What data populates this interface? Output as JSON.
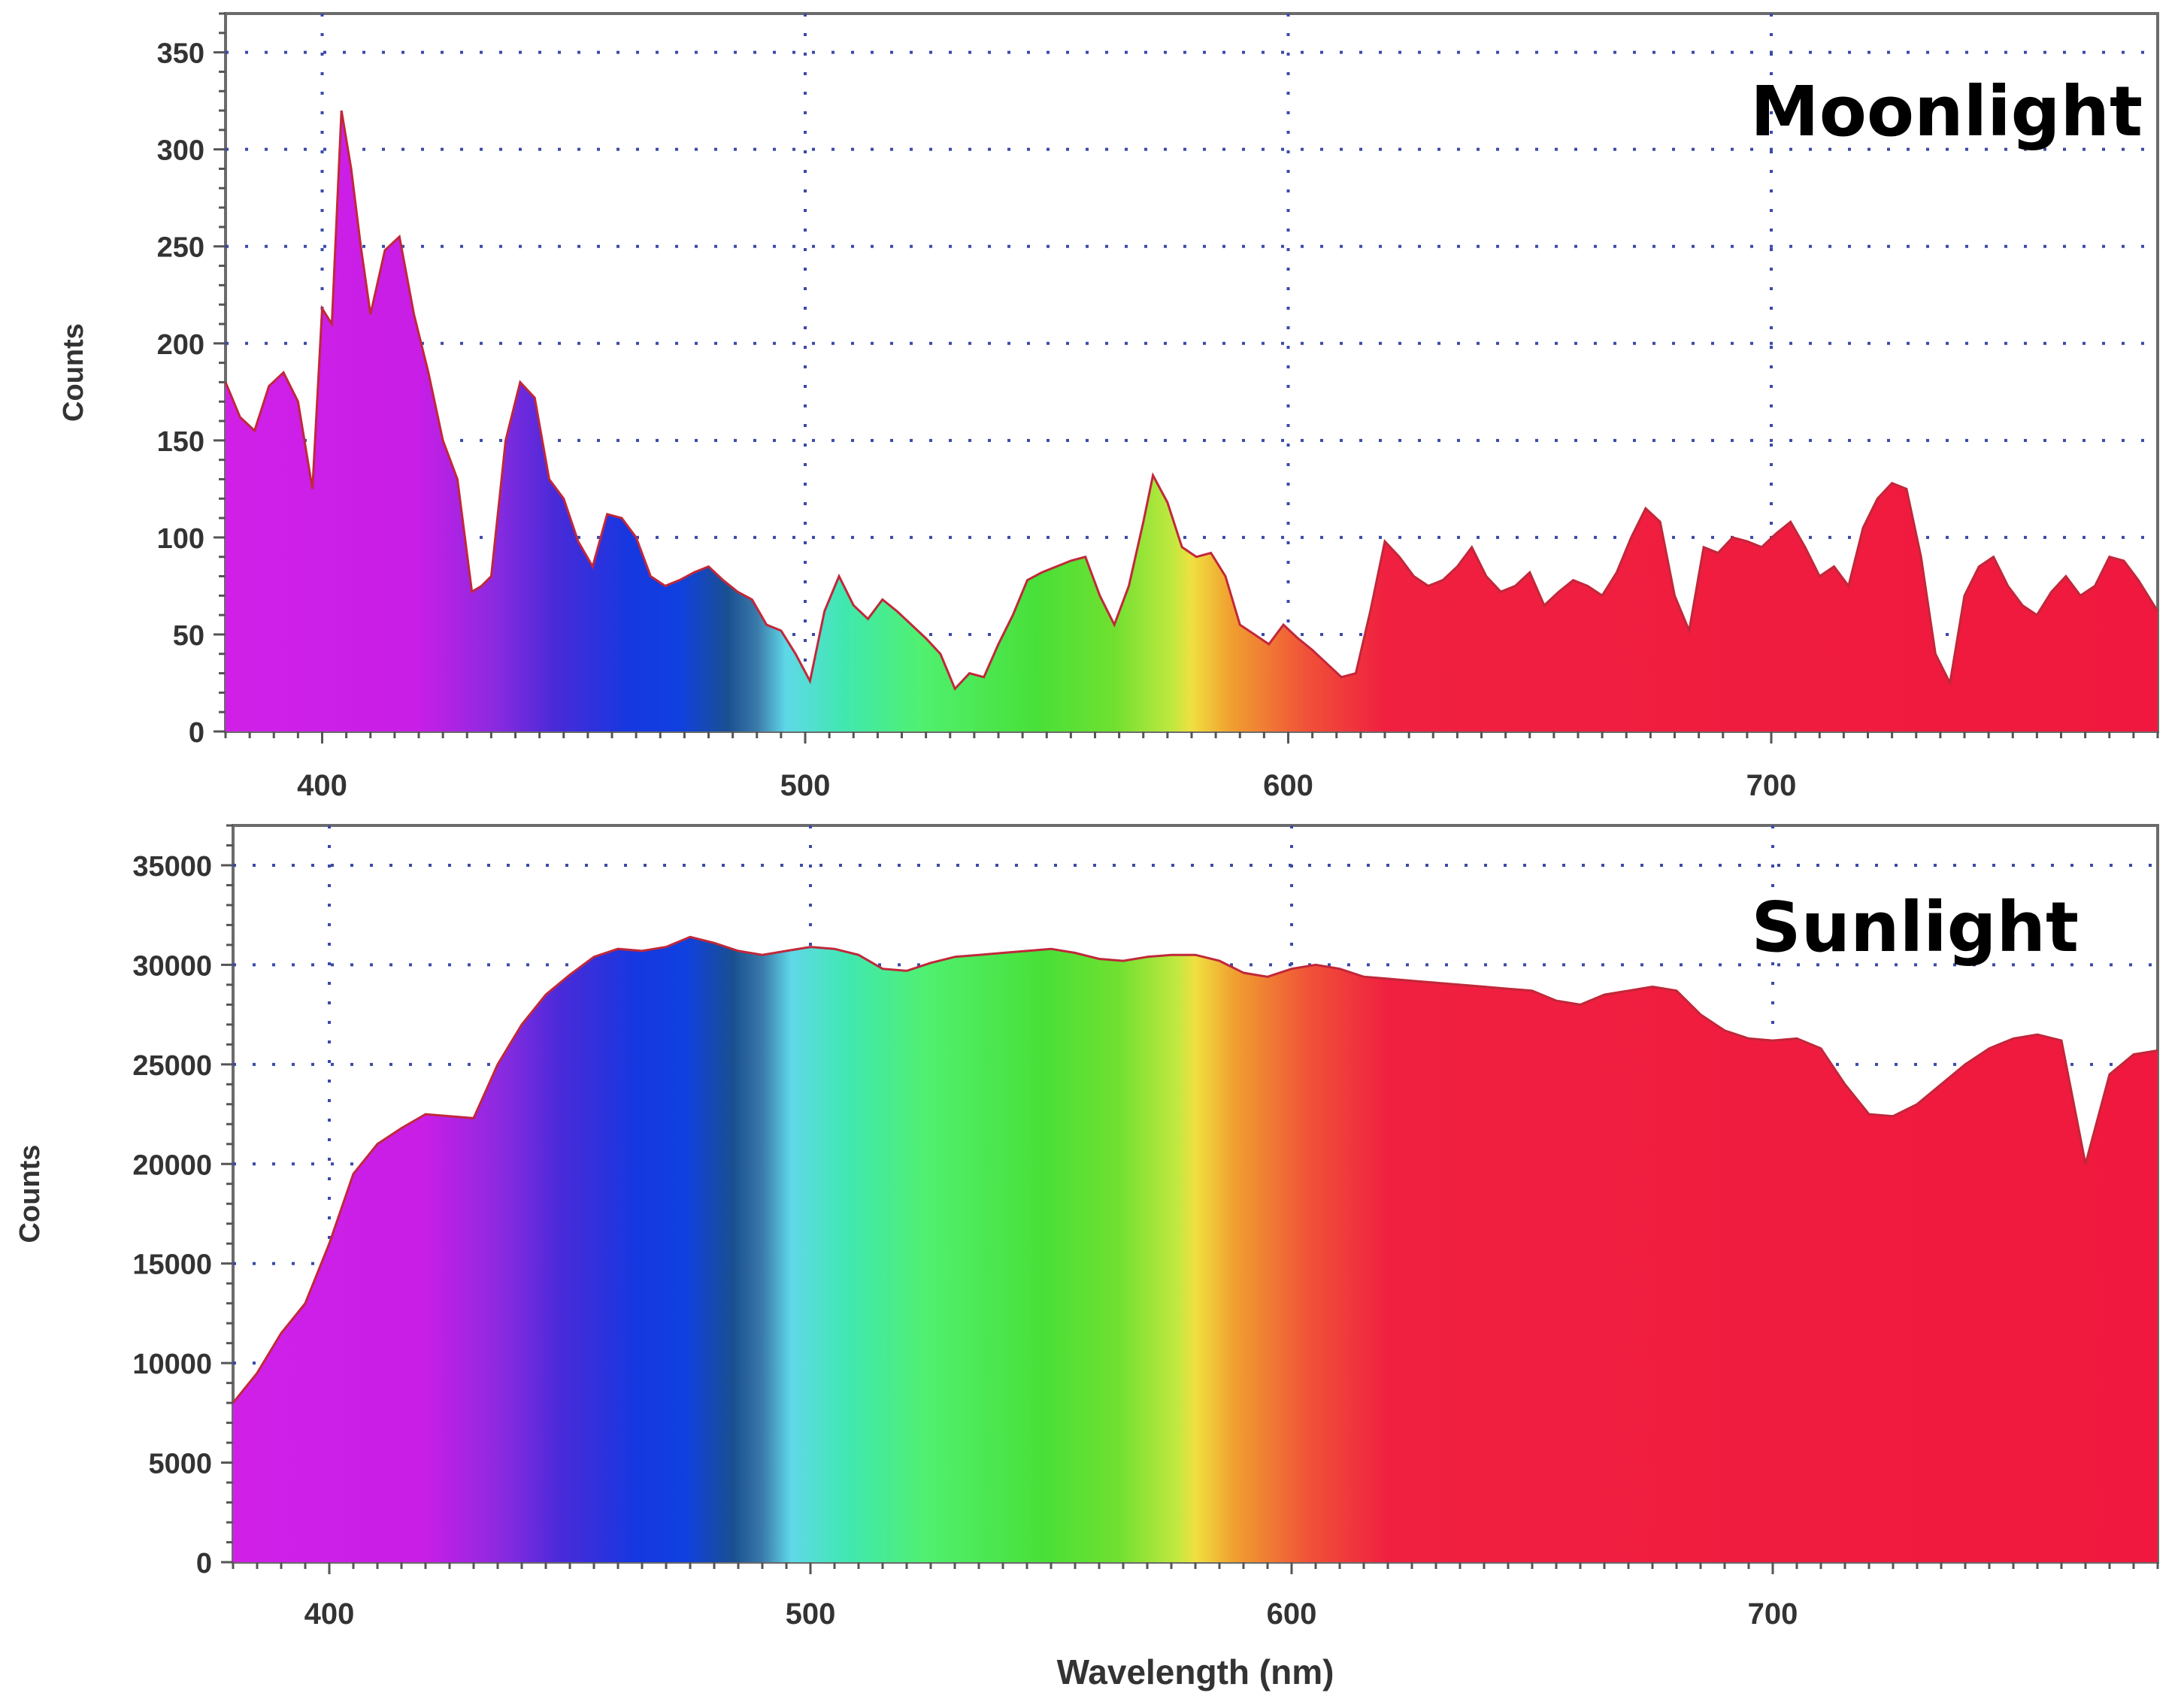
{
  "chart_data": [
    {
      "type": "area",
      "label": "Moonlight",
      "ylabel": "Counts",
      "xlabel": "",
      "xlim": [
        380,
        780
      ],
      "ylim": [
        0,
        370
      ],
      "xticks": [
        400,
        500,
        600,
        700
      ],
      "yticks": [
        0,
        50,
        100,
        150,
        200,
        250,
        300,
        350
      ],
      "grid": true,
      "x": [
        380,
        383,
        386,
        389,
        392,
        395,
        398,
        400,
        402,
        404,
        406,
        408,
        410,
        413,
        416,
        419,
        422,
        425,
        428,
        431,
        433,
        435,
        438,
        441,
        444,
        447,
        450,
        453,
        456,
        459,
        462,
        465,
        468,
        471,
        474,
        477,
        480,
        483,
        486,
        489,
        492,
        495,
        498,
        501,
        504,
        507,
        510,
        513,
        516,
        519,
        522,
        525,
        528,
        531,
        534,
        537,
        540,
        543,
        546,
        549,
        552,
        555,
        558,
        561,
        564,
        567,
        570,
        572,
        575,
        578,
        581,
        584,
        587,
        590,
        593,
        596,
        599,
        602,
        605,
        608,
        611,
        614,
        617,
        620,
        623,
        626,
        629,
        632,
        635,
        638,
        641,
        644,
        647,
        650,
        653,
        656,
        659,
        662,
        665,
        668,
        671,
        674,
        677,
        680,
        683,
        686,
        689,
        692,
        695,
        698,
        701,
        704,
        707,
        710,
        713,
        716,
        719,
        722,
        725,
        728,
        731,
        734,
        737,
        740,
        743,
        746,
        749,
        752,
        755,
        758,
        761,
        764,
        767,
        770,
        773,
        776,
        780
      ],
      "values": [
        180,
        162,
        155,
        178,
        185,
        170,
        125,
        218,
        210,
        320,
        290,
        250,
        215,
        248,
        255,
        215,
        185,
        150,
        130,
        72,
        75,
        80,
        150,
        180,
        172,
        130,
        120,
        98,
        85,
        112,
        110,
        100,
        80,
        75,
        78,
        82,
        85,
        78,
        72,
        68,
        55,
        52,
        40,
        26,
        62,
        80,
        65,
        58,
        68,
        62,
        55,
        48,
        40,
        22,
        30,
        28,
        45,
        60,
        78,
        82,
        85,
        88,
        90,
        70,
        55,
        75,
        108,
        132,
        118,
        95,
        90,
        92,
        80,
        55,
        50,
        45,
        55,
        48,
        42,
        35,
        28,
        30,
        62,
        98,
        90,
        80,
        75,
        78,
        85,
        95,
        80,
        72,
        75,
        82,
        65,
        72,
        78,
        75,
        70,
        82,
        100,
        115,
        108,
        70,
        52,
        95,
        92,
        100,
        98,
        95,
        102,
        108,
        95,
        80,
        85,
        75,
        105,
        120,
        128,
        125,
        90,
        40,
        25,
        70,
        85,
        90,
        75,
        65,
        60,
        72,
        80,
        70,
        75,
        90,
        88,
        78,
        62
      ]
    },
    {
      "type": "area",
      "label": "Sunlight",
      "ylabel": "Counts",
      "xlabel": "Wavelength (nm)",
      "xlim": [
        380,
        780
      ],
      "ylim": [
        0,
        37000
      ],
      "xticks": [
        400,
        500,
        600,
        700
      ],
      "yticks": [
        0,
        5000,
        10000,
        15000,
        20000,
        25000,
        30000,
        35000
      ],
      "grid": true,
      "x": [
        380,
        385,
        390,
        395,
        400,
        405,
        410,
        415,
        420,
        425,
        430,
        435,
        440,
        445,
        450,
        455,
        460,
        465,
        470,
        475,
        480,
        485,
        490,
        495,
        500,
        505,
        510,
        515,
        520,
        525,
        530,
        535,
        540,
        545,
        550,
        555,
        560,
        565,
        570,
        575,
        580,
        585,
        590,
        595,
        600,
        605,
        610,
        615,
        620,
        625,
        630,
        635,
        640,
        645,
        650,
        655,
        660,
        665,
        670,
        675,
        680,
        685,
        690,
        695,
        700,
        705,
        710,
        715,
        720,
        725,
        730,
        735,
        740,
        745,
        750,
        755,
        760,
        765,
        770,
        775,
        780
      ],
      "values": [
        8000,
        9500,
        11500,
        13000,
        16000,
        19500,
        21000,
        21800,
        22500,
        22400,
        22300,
        25000,
        27000,
        28500,
        29500,
        30400,
        30800,
        30700,
        30900,
        31400,
        31100,
        30700,
        30500,
        30700,
        30900,
        30800,
        30500,
        29800,
        29700,
        30100,
        30400,
        30500,
        30600,
        30700,
        30800,
        30600,
        30300,
        30200,
        30400,
        30500,
        30500,
        30200,
        29600,
        29400,
        29800,
        30000,
        29800,
        29400,
        29300,
        29200,
        29100,
        29000,
        28900,
        28800,
        28700,
        28200,
        28000,
        28500,
        28700,
        28900,
        28700,
        27500,
        26700,
        26300,
        26200,
        26300,
        25800,
        24000,
        22500,
        22400,
        23000,
        24000,
        25000,
        25800,
        26300,
        26500,
        26200,
        20000,
        24500,
        25500,
        25700
      ]
    }
  ]
}
